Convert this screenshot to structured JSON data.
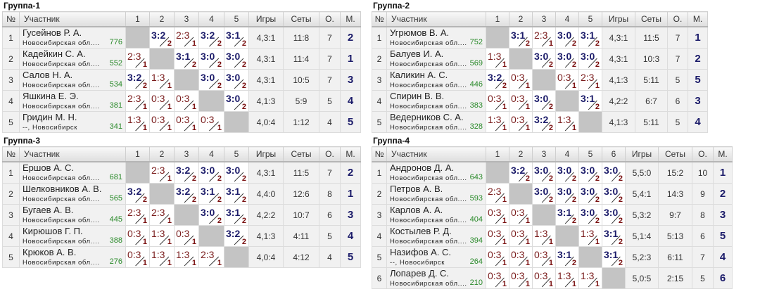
{
  "headers": {
    "num": "№",
    "participant": "Участник",
    "games": "Игры",
    "sets": "Сеты",
    "points": "О.",
    "place": "М."
  },
  "colors": {
    "win": "#1c1c6a",
    "loss": "#7a1c1c",
    "rating": "#2a8a2a"
  },
  "groups": [
    {
      "title": "Группа-1",
      "players": [
        {
          "num": "1",
          "name": "Гусейнов Р. А.",
          "region": "Новосибирская обл....",
          "rating": "776",
          "results": [
            null,
            [
              "3:2",
              "2"
            ],
            [
              "2:3",
              "1"
            ],
            [
              "3:2",
              "2"
            ],
            [
              "3:1",
              "2"
            ]
          ],
          "games": "4,3:1",
          "sets": "11:8",
          "points": "7",
          "place": "2"
        },
        {
          "num": "2",
          "name": "Кадейкин С. А.",
          "region": "Новосибирская обл....",
          "rating": "552",
          "results": [
            [
              "2:3",
              "1"
            ],
            null,
            [
              "3:1",
              "2"
            ],
            [
              "3:0",
              "2"
            ],
            [
              "3:0",
              "2"
            ]
          ],
          "games": "4,3:1",
          "sets": "11:4",
          "points": "7",
          "place": "1"
        },
        {
          "num": "3",
          "name": "Салов Н. А.",
          "region": "Новосибирская обл....",
          "rating": "534",
          "results": [
            [
              "3:2",
              "2"
            ],
            [
              "1:3",
              "1"
            ],
            null,
            [
              "3:0",
              "2"
            ],
            [
              "3:0",
              "2"
            ]
          ],
          "games": "4,3:1",
          "sets": "10:5",
          "points": "7",
          "place": "3"
        },
        {
          "num": "4",
          "name": "Яшкина Е. Э.",
          "region": "Новосибирская обл....",
          "rating": "381",
          "results": [
            [
              "2:3",
              "1"
            ],
            [
              "0:3",
              "1"
            ],
            [
              "0:3",
              "1"
            ],
            null,
            [
              "3:0",
              "2"
            ]
          ],
          "games": "4,1:3",
          "sets": "5:9",
          "points": "5",
          "place": "4"
        },
        {
          "num": "5",
          "name": "Гридин М. Н.",
          "region": "--, Новосибирск",
          "rating": "341",
          "results": [
            [
              "1:3",
              "1"
            ],
            [
              "0:3",
              "1"
            ],
            [
              "0:3",
              "1"
            ],
            [
              "0:3",
              "1"
            ],
            null
          ],
          "games": "4,0:4",
          "sets": "1:12",
          "points": "4",
          "place": "5"
        }
      ]
    },
    {
      "title": "Группа-2",
      "players": [
        {
          "num": "1",
          "name": "Угрюмов В. А.",
          "region": "Новосибирская обл....",
          "rating": "752",
          "results": [
            null,
            [
              "3:1",
              "2"
            ],
            [
              "2:3",
              "1"
            ],
            [
              "3:0",
              "2"
            ],
            [
              "3:1",
              "2"
            ]
          ],
          "games": "4,3:1",
          "sets": "11:5",
          "points": "7",
          "place": "1"
        },
        {
          "num": "2",
          "name": "Балуев И. А.",
          "region": "Новосибирская обл....",
          "rating": "569",
          "results": [
            [
              "1:3",
              "1"
            ],
            null,
            [
              "3:0",
              "2"
            ],
            [
              "3:0",
              "2"
            ],
            [
              "3:0",
              "2"
            ]
          ],
          "games": "4,3:1",
          "sets": "10:3",
          "points": "7",
          "place": "2"
        },
        {
          "num": "3",
          "name": "Каликин А. С.",
          "region": "Новосибирская обл....",
          "rating": "446",
          "results": [
            [
              "3:2",
              "2"
            ],
            [
              "0:3",
              "1"
            ],
            null,
            [
              "0:3",
              "1"
            ],
            [
              "2:3",
              "1"
            ]
          ],
          "games": "4,1:3",
          "sets": "5:11",
          "points": "5",
          "place": "5"
        },
        {
          "num": "4",
          "name": "Спирин В. В.",
          "region": "Новосибирская обл....",
          "rating": "383",
          "results": [
            [
              "0:3",
              "1"
            ],
            [
              "0:3",
              "1"
            ],
            [
              "3:0",
              "2"
            ],
            null,
            [
              "3:1",
              "2"
            ]
          ],
          "games": "4,2:2",
          "sets": "6:7",
          "points": "6",
          "place": "3"
        },
        {
          "num": "5",
          "name": "Ведерников С. А.",
          "region": "Новосибирская обл....",
          "rating": "328",
          "results": [
            [
              "1:3",
              "1"
            ],
            [
              "0:3",
              "1"
            ],
            [
              "3:2",
              "2"
            ],
            [
              "1:3",
              "1"
            ],
            null
          ],
          "games": "4,1:3",
          "sets": "5:11",
          "points": "5",
          "place": "4"
        }
      ]
    },
    {
      "title": "Группа-3",
      "players": [
        {
          "num": "1",
          "name": "Ершов А. С.",
          "region": "Новосибирская обл....",
          "rating": "681",
          "results": [
            null,
            [
              "2:3",
              "1"
            ],
            [
              "3:2",
              "2"
            ],
            [
              "3:0",
              "2"
            ],
            [
              "3:0",
              "2"
            ]
          ],
          "games": "4,3:1",
          "sets": "11:5",
          "points": "7",
          "place": "2"
        },
        {
          "num": "2",
          "name": "Шелковников А. В.",
          "region": "Новосибирская обл....",
          "rating": "565",
          "results": [
            [
              "3:2",
              "2"
            ],
            null,
            [
              "3:2",
              "2"
            ],
            [
              "3:1",
              "2"
            ],
            [
              "3:1",
              "2"
            ]
          ],
          "games": "4,4:0",
          "sets": "12:6",
          "points": "8",
          "place": "1"
        },
        {
          "num": "3",
          "name": "Бугаев А. В.",
          "region": "Новосибирская обл....",
          "rating": "445",
          "results": [
            [
              "2:3",
              "1"
            ],
            [
              "2:3",
              "1"
            ],
            null,
            [
              "3:0",
              "2"
            ],
            [
              "3:1",
              "2"
            ]
          ],
          "games": "4,2:2",
          "sets": "10:7",
          "points": "6",
          "place": "3"
        },
        {
          "num": "4",
          "name": "Кирюшов Г. П.",
          "region": "Новосибирская обл....",
          "rating": "388",
          "results": [
            [
              "0:3",
              "1"
            ],
            [
              "1:3",
              "1"
            ],
            [
              "0:3",
              "1"
            ],
            null,
            [
              "3:2",
              "2"
            ]
          ],
          "games": "4,1:3",
          "sets": "4:11",
          "points": "5",
          "place": "4"
        },
        {
          "num": "5",
          "name": "Крюков А. В.",
          "region": "Новосибирская обл....",
          "rating": "276",
          "results": [
            [
              "0:3",
              "1"
            ],
            [
              "1:3",
              "1"
            ],
            [
              "1:3",
              "1"
            ],
            [
              "2:3",
              "1"
            ],
            null
          ],
          "games": "4,0:4",
          "sets": "4:12",
          "points": "4",
          "place": "5"
        }
      ]
    },
    {
      "title": "Группа-4",
      "players": [
        {
          "num": "1",
          "name": "Андронов Д. А.",
          "region": "Новосибирская обл....",
          "rating": "643",
          "results": [
            null,
            [
              "3:2",
              "2"
            ],
            [
              "3:0",
              "2"
            ],
            [
              "3:0",
              "2"
            ],
            [
              "3:0",
              "2"
            ],
            [
              "3:0",
              "2"
            ]
          ],
          "games": "5,5:0",
          "sets": "15:2",
          "points": "10",
          "place": "1"
        },
        {
          "num": "2",
          "name": "Петров А. В.",
          "region": "Новосибирская обл....",
          "rating": "593",
          "results": [
            [
              "2:3",
              "1"
            ],
            null,
            [
              "3:0",
              "2"
            ],
            [
              "3:0",
              "2"
            ],
            [
              "3:0",
              "2"
            ],
            [
              "3:0",
              "2"
            ]
          ],
          "games": "5,4:1",
          "sets": "14:3",
          "points": "9",
          "place": "2"
        },
        {
          "num": "3",
          "name": "Карлов А. А.",
          "region": "Новосибирская обл....",
          "rating": "404",
          "results": [
            [
              "0:3",
              "1"
            ],
            [
              "0:3",
              "1"
            ],
            null,
            [
              "3:1",
              "2"
            ],
            [
              "3:0",
              "2"
            ],
            [
              "3:0",
              "2"
            ]
          ],
          "games": "5,3:2",
          "sets": "9:7",
          "points": "8",
          "place": "3"
        },
        {
          "num": "4",
          "name": "Костылев Р. Д.",
          "region": "Новосибирская обл....",
          "rating": "394",
          "results": [
            [
              "0:3",
              "1"
            ],
            [
              "0:3",
              "1"
            ],
            [
              "1:3",
              "1"
            ],
            null,
            [
              "1:3",
              "1"
            ],
            [
              "3:1",
              "2"
            ]
          ],
          "games": "5,1:4",
          "sets": "5:13",
          "points": "6",
          "place": "5"
        },
        {
          "num": "5",
          "name": "Назифов А. С.",
          "region": "--, Новосибирск",
          "rating": "264",
          "results": [
            [
              "0:3",
              "1"
            ],
            [
              "0:3",
              "1"
            ],
            [
              "0:3",
              "1"
            ],
            [
              "3:1",
              "2"
            ],
            null,
            [
              "3:1",
              "2"
            ]
          ],
          "games": "5,2:3",
          "sets": "6:11",
          "points": "7",
          "place": "4"
        },
        {
          "num": "6",
          "name": "Лопарев Д. С.",
          "region": "Новосибирская обл....",
          "rating": "210",
          "results": [
            [
              "0:3",
              "1"
            ],
            [
              "0:3",
              "1"
            ],
            [
              "0:3",
              "1"
            ],
            [
              "1:3",
              "1"
            ],
            [
              "1:3",
              "1"
            ],
            null
          ],
          "games": "5,0:5",
          "sets": "2:15",
          "points": "5",
          "place": "6"
        }
      ]
    }
  ]
}
